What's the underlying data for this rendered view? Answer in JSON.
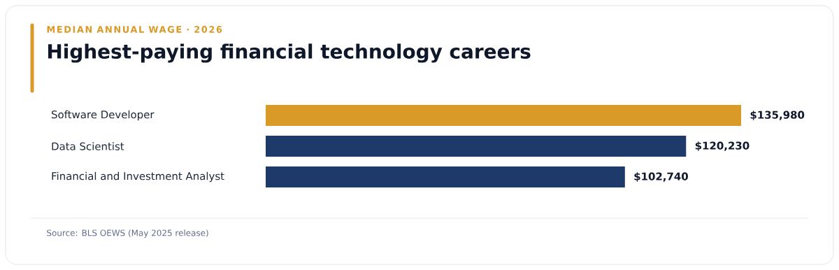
{
  "chart_data": {
    "type": "bar",
    "orientation": "horizontal",
    "subtitle": "MEDIAN ANNUAL WAGE · 2026",
    "title": "Highest-paying financial technology careers",
    "categories": [
      "Software Developer",
      "Data Scientist",
      "Financial and Investment Analyst"
    ],
    "values": [
      135980,
      120230,
      102740
    ],
    "value_labels": [
      "$135,980",
      "$120,230",
      "$102,740"
    ],
    "colors": [
      "#d99a27",
      "#1d3a6b",
      "#1d3a6b"
    ],
    "annotations": [
      "Source: BLS OEWS (May 2025 release)"
    ]
  }
}
